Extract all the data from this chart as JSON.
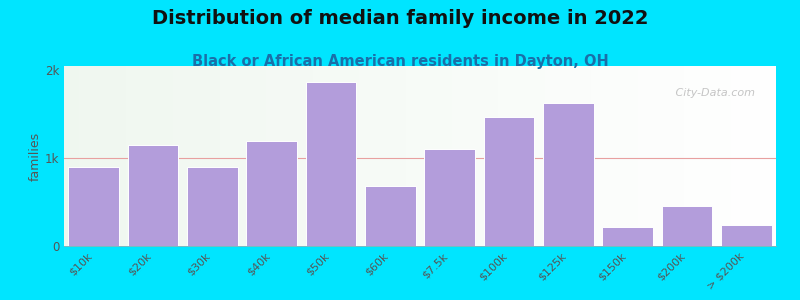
{
  "title": "Distribution of median family income in 2022",
  "subtitle": "Black or African American residents in Dayton, OH",
  "categories": [
    "$10k",
    "$20k",
    "$30k",
    "$40k",
    "$50k",
    "$60k",
    "$7.5k",
    "$100k",
    "$125k",
    "$150k",
    "$200k",
    "> $200k"
  ],
  "values": [
    900,
    1150,
    900,
    1200,
    1870,
    680,
    1100,
    1470,
    1630,
    220,
    450,
    240
  ],
  "bar_color": "#b39ddb",
  "bar_edgecolor": "#ffffff",
  "background_outer": "#00e5ff",
  "plot_bg_color": "#e8f5e9",
  "title_fontsize": 14,
  "subtitle_fontsize": 10.5,
  "ylabel": "families",
  "ylim": [
    0,
    2050
  ],
  "yticks": [
    0,
    1000,
    2000
  ],
  "ytick_labels": [
    "0",
    "1k",
    "2k"
  ],
  "watermark": " City-Data.com",
  "hline_y": 1000,
  "hline_color": "#e8a0a0"
}
